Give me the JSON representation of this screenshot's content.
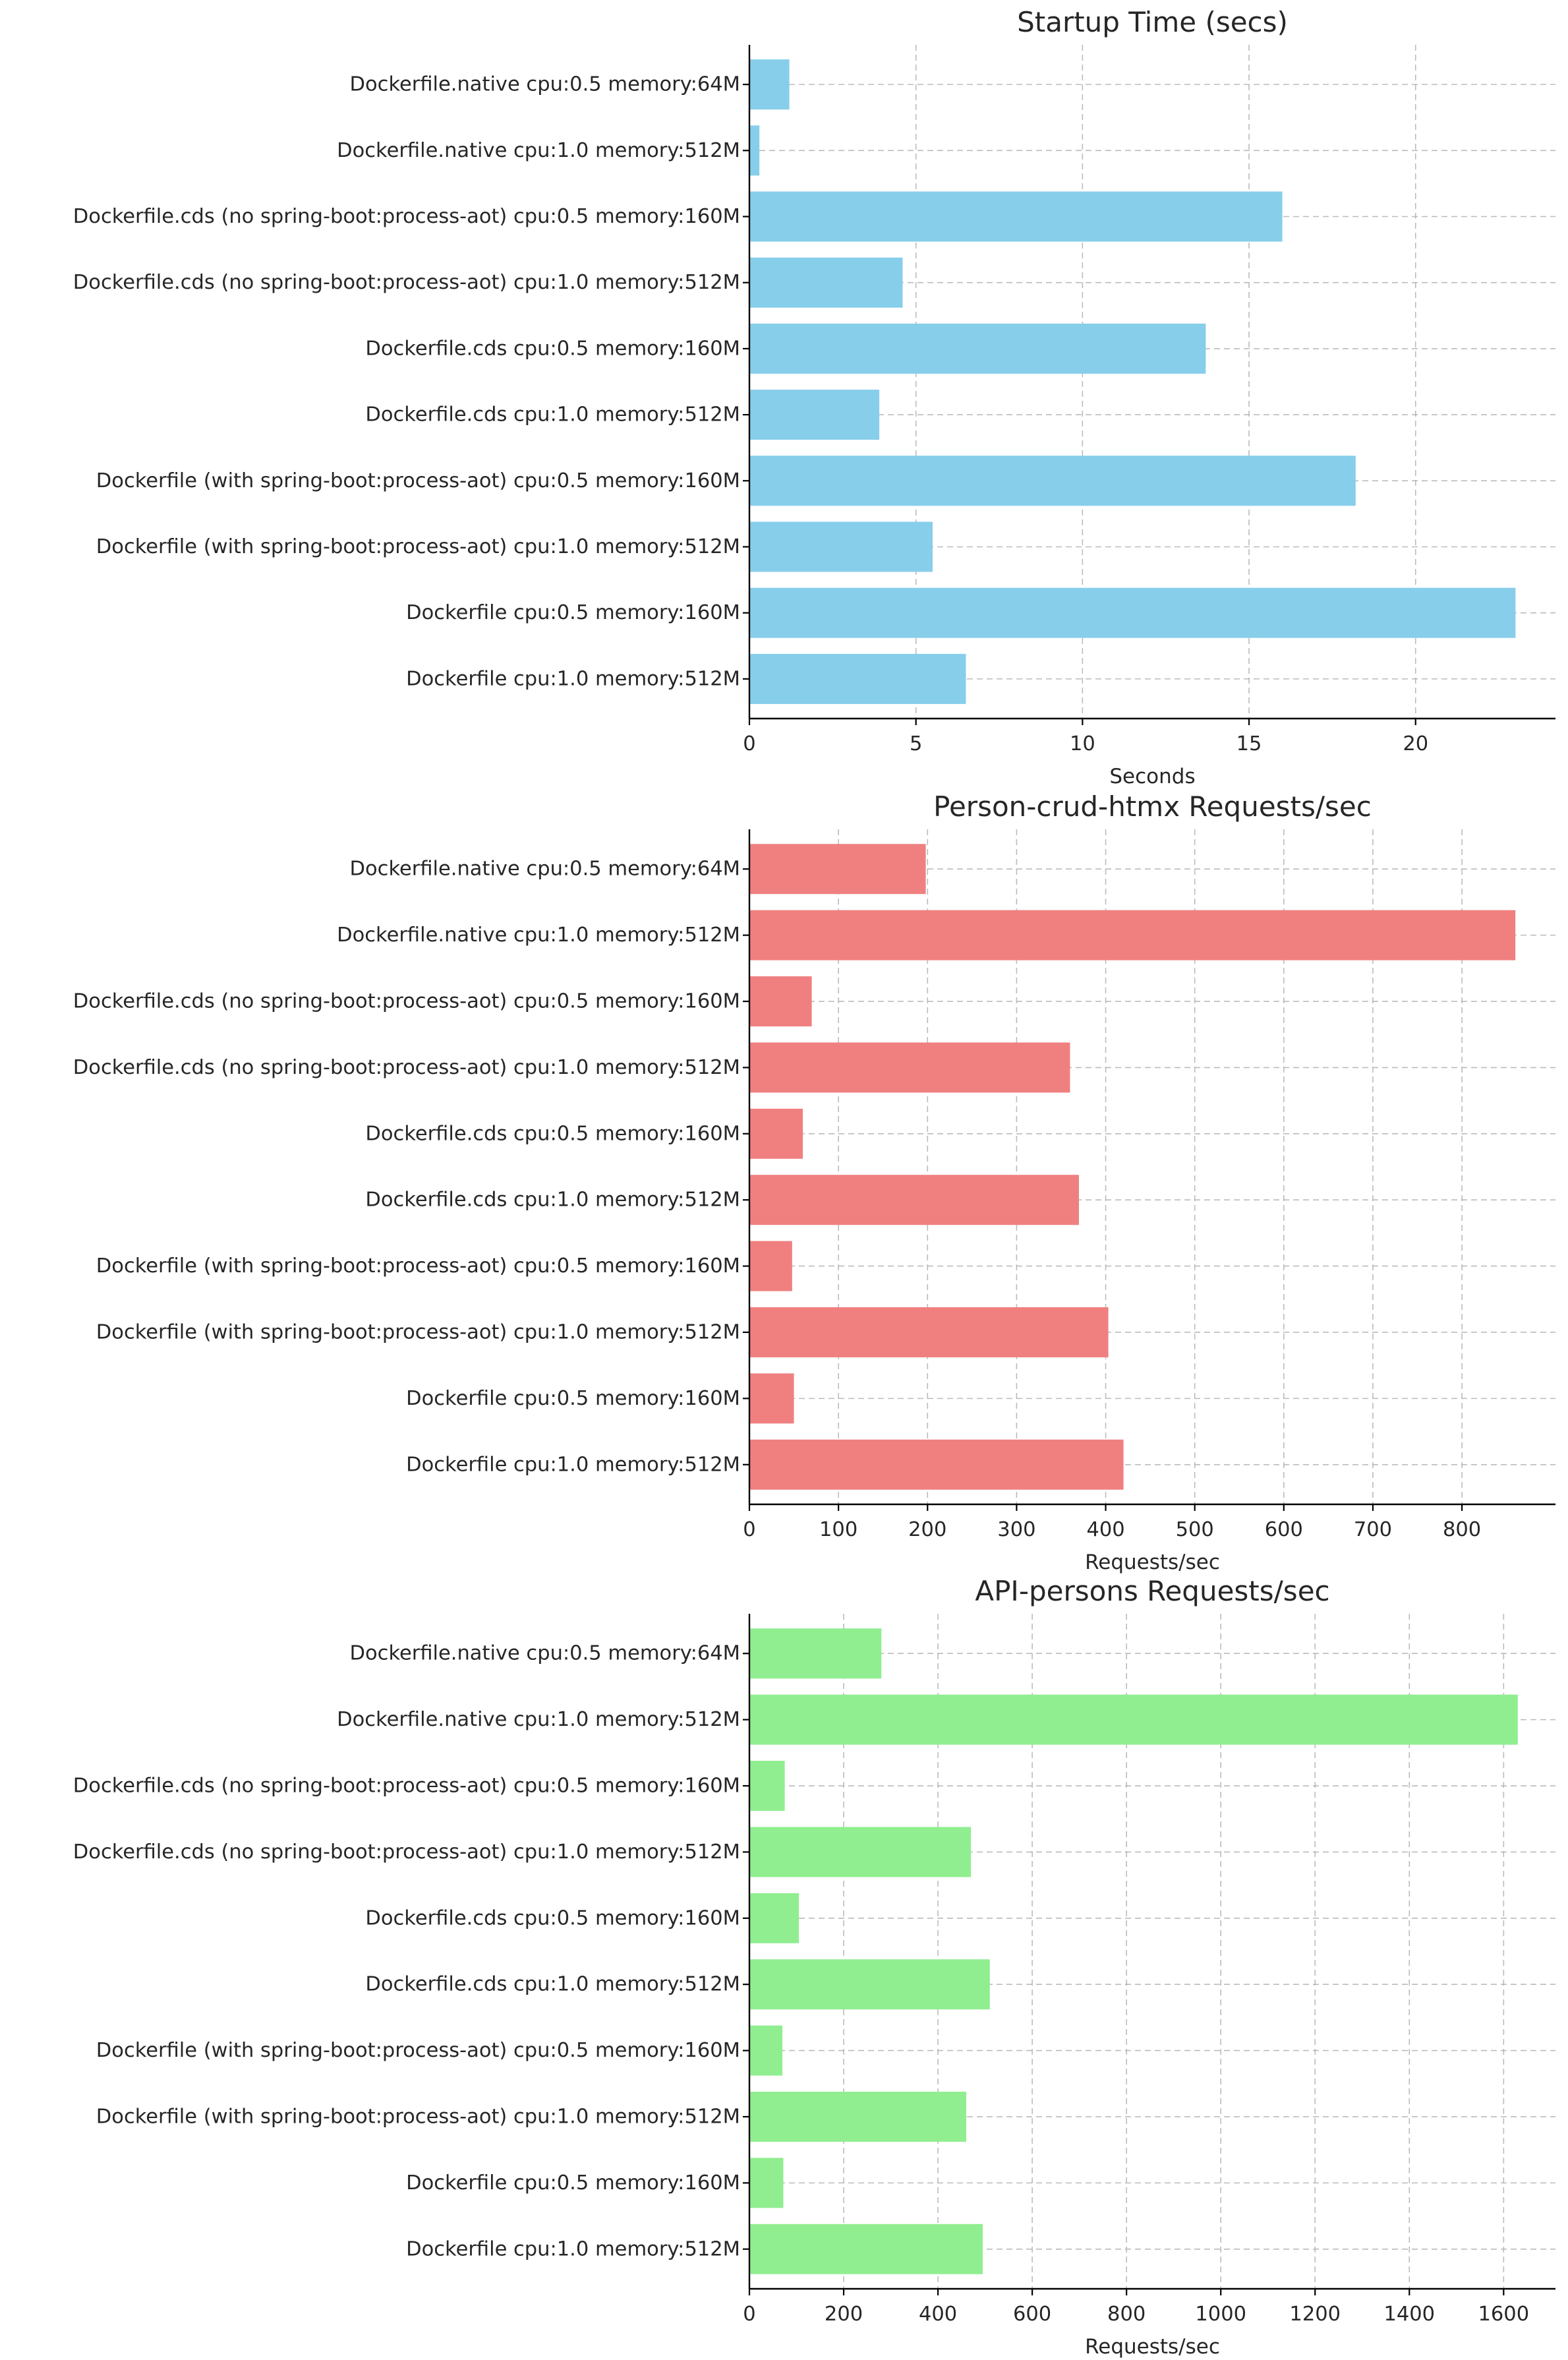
{
  "chart_data": [
    {
      "type": "bar",
      "orientation": "horizontal",
      "title": "Startup Time (secs)",
      "xlabel": "Seconds",
      "ylabel": "",
      "color": "#87ceeb",
      "xlim": [
        0,
        24.2
      ],
      "xticks": [
        0,
        5,
        10,
        15,
        20
      ],
      "grid": true,
      "categories": [
        "Dockerfile.native cpu:0.5 memory:64M",
        "Dockerfile.native cpu:1.0 memory:512M",
        "Dockerfile.cds (no spring-boot:process-aot) cpu:0.5 memory:160M",
        "Dockerfile.cds (no spring-boot:process-aot) cpu:1.0 memory:512M",
        "Dockerfile.cds cpu:0.5 memory:160M",
        "Dockerfile.cds cpu:1.0 memory:512M",
        "Dockerfile (with spring-boot:process-aot) cpu:0.5 memory:160M",
        "Dockerfile (with spring-boot:process-aot) cpu:1.0 memory:512M",
        "Dockerfile cpu:0.5 memory:160M",
        "Dockerfile cpu:1.0 memory:512M"
      ],
      "values": [
        1.2,
        0.3,
        16.0,
        4.6,
        13.7,
        3.9,
        18.2,
        5.5,
        23.0,
        6.5
      ]
    },
    {
      "type": "bar",
      "orientation": "horizontal",
      "title": "Person-crud-htmx Requests/sec",
      "xlabel": "Requests/sec",
      "ylabel": "",
      "color": "#f08080",
      "xlim": [
        0,
        905
      ],
      "xticks": [
        0,
        100,
        200,
        300,
        400,
        500,
        600,
        700,
        800
      ],
      "grid": true,
      "categories": [
        "Dockerfile.native cpu:0.5 memory:64M",
        "Dockerfile.native cpu:1.0 memory:512M",
        "Dockerfile.cds (no spring-boot:process-aot) cpu:0.5 memory:160M",
        "Dockerfile.cds (no spring-boot:process-aot) cpu:1.0 memory:512M",
        "Dockerfile.cds cpu:0.5 memory:160M",
        "Dockerfile.cds cpu:1.0 memory:512M",
        "Dockerfile (with spring-boot:process-aot) cpu:0.5 memory:160M",
        "Dockerfile (with spring-boot:process-aot) cpu:1.0 memory:512M",
        "Dockerfile cpu:0.5 memory:160M",
        "Dockerfile cpu:1.0 memory:512M"
      ],
      "values": [
        198,
        860,
        70,
        360,
        60,
        370,
        48,
        403,
        50,
        420
      ]
    },
    {
      "type": "bar",
      "orientation": "horizontal",
      "title": "API-persons Requests/sec",
      "xlabel": "Requests/sec",
      "ylabel": "",
      "color": "#90ee90",
      "xlim": [
        0,
        1710
      ],
      "xticks": [
        0,
        200,
        400,
        600,
        800,
        1000,
        1200,
        1400,
        1600
      ],
      "grid": true,
      "categories": [
        "Dockerfile.native cpu:0.5 memory:64M",
        "Dockerfile.native cpu:1.0 memory:512M",
        "Dockerfile.cds (no spring-boot:process-aot) cpu:0.5 memory:160M",
        "Dockerfile.cds (no spring-boot:process-aot) cpu:1.0 memory:512M",
        "Dockerfile.cds cpu:0.5 memory:160M",
        "Dockerfile.cds cpu:1.0 memory:512M",
        "Dockerfile (with spring-boot:process-aot) cpu:0.5 memory:160M",
        "Dockerfile (with spring-boot:process-aot) cpu:1.0 memory:512M",
        "Dockerfile cpu:0.5 memory:160M",
        "Dockerfile cpu:1.0 memory:512M"
      ],
      "values": [
        280,
        1630,
        75,
        470,
        105,
        510,
        70,
        460,
        72,
        495
      ]
    }
  ]
}
